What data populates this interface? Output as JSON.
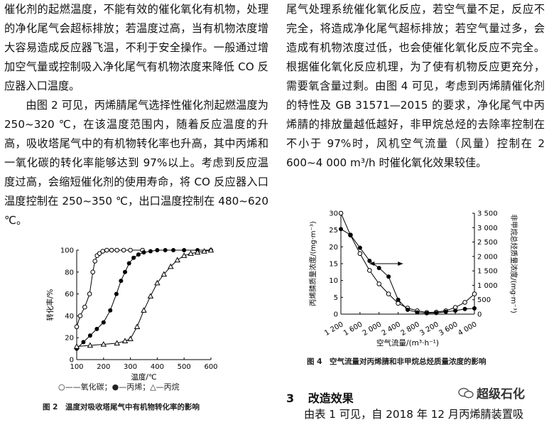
{
  "left_text": {
    "para1": "催化剂的起燃温度，不能有效的催化氧化有机物，处理的净化尾气会超标排放；若温度过高，当有机物浓度增大容易造成反应器飞温，不利于安全操作。一般通过增加空气量或控制吸入净化尾气有机物浓度来降低 CO 反应器入口温度。",
    "para2": "由图 2 可见，丙烯腈尾气选择性催化剂起燃温度为 250~320 ℃，在该温度范围内，随着反应温度的升高，吸收塔尾气中的有机物转化率也升高，其中丙烯和一氧化碳的转化率能够达到 97%以上。考虑到反应温度过高，会缩短催化剂的使用寿命，将 CO 反应器入口温度控制在 250~350 ℃，出口温度控制在 480~620 ℃。"
  },
  "right_text": {
    "para1": "尾气处理系统催化氧化反应，若空气量不足，反应不完全，将造成净化尾气超标排放；若空气量过多，会造成有机物浓度过低，也会使催化氧化反应不完全。根据催化氧化反应机理，为了使有机物反应更充分，需要氧含量过剩。由图 4 可见，考虑到丙烯腈催化剂的特性及 GB 31571—2015 的要求，净化尾气中丙烯腈的排放量越低越好，非甲烷总烃的去除率控制在不小于 97%时，风机空气流量（风量）控制在 2 600~4 000 m³/h 时催化氧化效果较佳。"
  },
  "figure2": {
    "caption": "图 2　温度对吸收塔尾气中有机物转化率的影响",
    "legend": "○—一氧化碳；●—丙烯；△—丙烷",
    "legend_text": "○——氧化碳；●—丙烯；△—丙烷"
  },
  "figure4": {
    "caption": "图 4　空气流量对丙烯腈和非甲烷总烃质量浓度的影响"
  },
  "section": {
    "number": "3",
    "title": "改造效果"
  },
  "last_line": "由表 1 可见，自 2018 年 12 月丙烯腈装置吸",
  "watermark": "超级石化",
  "colors": {
    "text": "#111111",
    "line": "#000000"
  },
  "chart_data": [
    {
      "type": "line",
      "xlabel": "温度/℃",
      "ylabel": "转化率/%",
      "xlim": [
        100,
        600
      ],
      "ylim": [
        0,
        100
      ],
      "xticks": [
        100,
        200,
        300,
        400,
        500,
        600
      ],
      "yticks": [
        0,
        20,
        40,
        60,
        80,
        100
      ],
      "grid": false,
      "series": [
        {
          "name": "一氧化碳",
          "marker": "open-circle",
          "x": [
            100,
            113,
            130,
            148,
            160,
            168,
            176,
            185,
            197,
            212,
            230,
            250,
            275,
            300,
            345
          ],
          "y": [
            30,
            40,
            48,
            60,
            80,
            90,
            95,
            97,
            99,
            100,
            100,
            100,
            100,
            100,
            100
          ]
        },
        {
          "name": "丙烯",
          "marker": "filled-circle",
          "x": [
            100,
            125,
            150,
            175,
            200,
            225,
            248,
            265,
            280,
            295,
            312,
            330,
            350,
            375,
            400,
            430,
            460,
            500,
            550,
            600
          ],
          "y": [
            10,
            16,
            22,
            28,
            34,
            45,
            60,
            72,
            80,
            88,
            93,
            96,
            98,
            99,
            100,
            100,
            100,
            100,
            100,
            100
          ]
        },
        {
          "name": "丙烷",
          "marker": "open-triangle",
          "x": [
            100,
            150,
            200,
            250,
            280,
            300,
            325,
            350,
            375,
            400,
            425,
            450,
            475,
            500,
            525,
            550,
            575,
            600
          ],
          "y": [
            12,
            13,
            14,
            15,
            17,
            19,
            30,
            45,
            58,
            70,
            78,
            85,
            91,
            95,
            97,
            98,
            99,
            100
          ]
        }
      ]
    },
    {
      "type": "line",
      "xlabel": "空气流量/(m³·h⁻¹)",
      "ylabel": "丙烯腈质量浓度/(mg·m⁻³)",
      "ylabel_right": "非甲烷总烃质量浓度/(mg·m⁻³)",
      "xlim": [
        1200,
        4000
      ],
      "ylim": [
        0,
        30
      ],
      "ylim_right": [
        0,
        3500
      ],
      "xticks": [
        1200,
        1600,
        2000,
        2400,
        2800,
        3200,
        3600,
        4000
      ],
      "yticks": [
        0,
        5,
        10,
        15,
        20,
        25,
        30
      ],
      "yticks_right": [
        0,
        500,
        1000,
        1500,
        2000,
        2500,
        3000,
        3500
      ],
      "grid": false,
      "series": [
        {
          "name": "丙烯腈",
          "axis": "left",
          "marker": "open-circle",
          "x": [
            1200,
            1400,
            1600,
            1800,
            2000,
            2200,
            2400,
            2600,
            2800,
            3000,
            3200,
            3400,
            3600,
            3800,
            4000
          ],
          "y": [
            30,
            23.5,
            18,
            13,
            9,
            6,
            3.2,
            1.8,
            1,
            0.5,
            0.6,
            1,
            2,
            3.5,
            6
          ]
        },
        {
          "name": "非甲烷总烃",
          "axis": "right",
          "marker": "filled-circle",
          "x": [
            1200,
            1400,
            1600,
            1800,
            2000,
            2200,
            2400,
            2600,
            2800,
            3000,
            3200,
            3400,
            3600,
            3800,
            4000
          ],
          "y": [
            2950,
            2750,
            2300,
            1850,
            1600,
            1300,
            500,
            150,
            60,
            30,
            40,
            80,
            120,
            180,
            200
          ]
        }
      ]
    }
  ]
}
